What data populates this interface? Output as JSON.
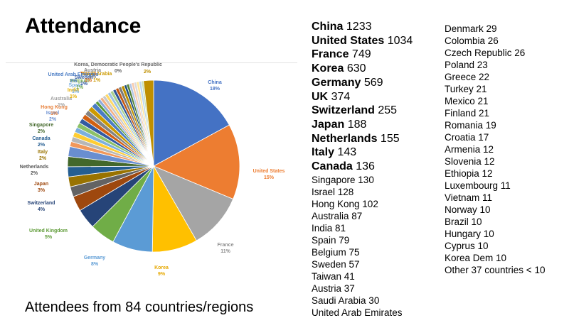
{
  "title": "Attendance",
  "caption": "Attendees from 84 countries/regions",
  "top_countries": [
    {
      "country": "China",
      "count": "1233"
    },
    {
      "country": "United States",
      "count": "1034"
    },
    {
      "country": "France",
      "count": "749"
    },
    {
      "country": "Korea",
      "count": "630"
    },
    {
      "country": "Germany",
      "count": "569"
    },
    {
      "country": "UK",
      "count": "374"
    },
    {
      "country": "Switzerland",
      "count": "255"
    },
    {
      "country": "Japan",
      "count": "188"
    },
    {
      "country": "Netherlands",
      "count": "155"
    },
    {
      "country": "Italy",
      "count": "143"
    },
    {
      "country": "Canada",
      "count": "136"
    }
  ],
  "list_col1": [
    "Singapore 130",
    "Israel 128",
    "Hong Kong 102",
    "Australia 87",
    "India 81",
    "Spain 79",
    "Belgium 75",
    "Sweden 57",
    "Taiwan 41",
    "Austria 37",
    "Saudi Arabia 30",
    "United Arab Emirates"
  ],
  "list_col2": [
    "Denmark 29",
    "Colombia 26",
    "Czech Republic 26",
    "Poland 23",
    "Greece 22",
    "Turkey 21",
    "Mexico 21",
    "Finland 21",
    "Romania 19",
    "Croatia 17",
    "Armenia 12",
    "Slovenia 12",
    "Ethiopia 12",
    "Luxembourg 11",
    "Vietnam 11",
    "Norway 10",
    "Brazil 10",
    "Hungary 10",
    "Cyprus 10",
    "Korea Dem 10",
    "Other 37 countries < 10"
  ],
  "chart_data": {
    "type": "pie",
    "slices": [
      {
        "label": "China",
        "value": 18,
        "pct_label": "18%",
        "color": "#4472c4",
        "label_color": "#4472c4"
      },
      {
        "label": "United States",
        "value": 15,
        "pct_label": "15%",
        "color": "#ed7d31",
        "label_color": "#ed7d31"
      },
      {
        "label": "France",
        "value": 11,
        "pct_label": "11%",
        "color": "#a5a5a5",
        "label_color": "#8f8f8f"
      },
      {
        "label": "Korea",
        "value": 9,
        "pct_label": "9%",
        "color": "#ffc000",
        "label_color": "#e6a800"
      },
      {
        "label": "Germany",
        "value": 8,
        "pct_label": "8%",
        "color": "#5b9bd5",
        "label_color": "#5b9bd5"
      },
      {
        "label": "United Kingdom",
        "value": 5,
        "pct_label": "5%",
        "color": "#70ad47",
        "label_color": "#5e9b37"
      },
      {
        "label": "Switzerland",
        "value": 4,
        "pct_label": "4%",
        "color": "#264478",
        "label_color": "#264478"
      },
      {
        "label": "Japan",
        "value": 3,
        "pct_label": "3%",
        "color": "#9e480e",
        "label_color": "#9e480e"
      },
      {
        "label": "Netherlands",
        "value": 2,
        "pct_label": "2%",
        "color": "#636363",
        "label_color": "#555555"
      },
      {
        "label": "Italy",
        "value": 2,
        "pct_label": "2%",
        "color": "#997300",
        "label_color": "#997300"
      },
      {
        "label": "Canada",
        "value": 2,
        "pct_label": "2%",
        "color": "#255e91",
        "label_color": "#255e91"
      },
      {
        "label": "Singapore",
        "value": 2,
        "pct_label": "2%",
        "color": "#43682b",
        "label_color": "#43682b"
      },
      {
        "label": "Israel",
        "value": 2,
        "pct_label": "2%",
        "color": "#698ed0",
        "label_color": "#698ed0"
      },
      {
        "label": "Hong Kong",
        "value": 1,
        "pct_label": "1%",
        "color": "#f1975a",
        "label_color": "#e8803a"
      },
      {
        "label": "Australia",
        "value": 1,
        "pct_label": "1%",
        "color": "#b7b7b7",
        "label_color": "#a0a0a0"
      },
      {
        "label": "India",
        "value": 1,
        "pct_label": "1%",
        "color": "#ffcd33",
        "label_color": "#e6b000"
      },
      {
        "label": "Spain",
        "value": 1,
        "pct_label": "1%",
        "color": "#7cafdd",
        "label_color": "#7cafdd"
      },
      {
        "label": "Belgium",
        "value": 1,
        "pct_label": "1%",
        "color": "#8cc168",
        "label_color": "#6fa84a"
      },
      {
        "label": "Sweden",
        "value": 1,
        "pct_label": "1%",
        "color": "#335aa1",
        "label_color": "#335aa1"
      },
      {
        "label": "Taiwan",
        "value": 1,
        "pct_label": "1%",
        "color": "#d26012",
        "label_color": "#d26012"
      },
      {
        "label": "Austria",
        "value": 1,
        "pct_label": "1%",
        "color": "#848484",
        "label_color": "#848484"
      },
      {
        "label": "Saudi Arabia",
        "value": 1,
        "pct_label": "1%",
        "color": "#cc9a00",
        "label_color": "#cc9a00"
      },
      {
        "label": "United Arab Emirates",
        "value": 1,
        "pct_label": "1%",
        "color": "#4a7cc4",
        "label_color": "#4a7cc4"
      },
      {
        "label": "",
        "value": 0.6,
        "pct_label": "",
        "color": "#5a9a3a",
        "label_color": "#5a9a3a"
      },
      {
        "label": "",
        "value": 0.6,
        "pct_label": "",
        "color": "#8faadc",
        "label_color": "#8faadc"
      },
      {
        "label": "",
        "value": 0.6,
        "pct_label": "",
        "color": "#f4b183",
        "label_color": "#f4b183"
      },
      {
        "label": "",
        "value": 0.6,
        "pct_label": "",
        "color": "#c9c9c9",
        "label_color": "#c9c9c9"
      },
      {
        "label": "",
        "value": 0.6,
        "pct_label": "",
        "color": "#ffd966",
        "label_color": "#ffd966"
      },
      {
        "label": "",
        "value": 0.6,
        "pct_label": "",
        "color": "#9dc3e6",
        "label_color": "#9dc3e6"
      },
      {
        "label": "",
        "value": 0.6,
        "pct_label": "",
        "color": "#a9d18e",
        "label_color": "#a9d18e"
      },
      {
        "label": "",
        "value": 0.6,
        "pct_label": "",
        "color": "#2f5597",
        "label_color": "#2f5597"
      },
      {
        "label": "",
        "value": 0.6,
        "pct_label": "",
        "color": "#c55a11",
        "label_color": "#c55a11"
      },
      {
        "label": "",
        "value": 0.6,
        "pct_label": "",
        "color": "#7b7b7b",
        "label_color": "#7b7b7b"
      },
      {
        "label": "",
        "value": 0.6,
        "pct_label": "",
        "color": "#bf9000",
        "label_color": "#bf9000"
      },
      {
        "label": "",
        "value": 0.5,
        "pct_label": "",
        "color": "#1f4e79",
        "label_color": "#1f4e79"
      },
      {
        "label": "",
        "value": 0.5,
        "pct_label": "",
        "color": "#548235",
        "label_color": "#548235"
      },
      {
        "label": "",
        "value": 0.5,
        "pct_label": "",
        "color": "#b4c7e7",
        "label_color": "#b4c7e7"
      },
      {
        "label": "",
        "value": 0.5,
        "pct_label": "",
        "color": "#f8cbad",
        "label_color": "#f8cbad"
      },
      {
        "label": "",
        "value": 0.5,
        "pct_label": "",
        "color": "#dbdbdb",
        "label_color": "#dbdbdb"
      },
      {
        "label": "",
        "value": 0.5,
        "pct_label": "",
        "color": "#ffe699",
        "label_color": "#ffe699"
      },
      {
        "label": "",
        "value": 0.5,
        "pct_label": "",
        "color": "#bdd7ee",
        "label_color": "#bdd7ee"
      },
      {
        "label": "Korea, Democratic People's Republic",
        "value": 0.4,
        "pct_label": "0%",
        "color": "#c5e0b4",
        "label_color": "#666666"
      },
      {
        "label": "",
        "value": 2,
        "pct_label": "2%",
        "color": "#bf8f00",
        "label_color": "#bf8f00"
      }
    ]
  }
}
